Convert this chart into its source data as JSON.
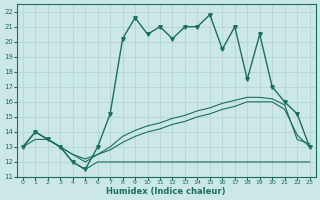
{
  "xlabel": "Humidex (Indice chaleur)",
  "xlim_min": -0.5,
  "xlim_max": 23.5,
  "ylim_min": 11,
  "ylim_max": 22.5,
  "xticks": [
    0,
    1,
    2,
    3,
    4,
    5,
    6,
    7,
    8,
    9,
    10,
    11,
    12,
    13,
    14,
    15,
    16,
    17,
    18,
    19,
    20,
    21,
    22,
    23
  ],
  "yticks": [
    11,
    12,
    13,
    14,
    15,
    16,
    17,
    18,
    19,
    20,
    21,
    22
  ],
  "bg_color": "#cce8e6",
  "line_color": "#1a6e60",
  "grid_color": "#b8d8d4",
  "main_x": [
    0,
    1,
    2,
    3,
    4,
    5,
    6,
    7,
    8,
    9,
    10,
    11,
    12,
    13,
    14,
    15,
    16,
    17,
    18,
    19,
    20,
    21,
    22,
    23
  ],
  "main_y": [
    13,
    14,
    13.5,
    13,
    12,
    11.5,
    13,
    15.2,
    20.2,
    21.6,
    20.5,
    21,
    20.2,
    21,
    21,
    21.8,
    19.5,
    21,
    17.5,
    20.5,
    17,
    16,
    15.2,
    13
  ],
  "flat_x": [
    0,
    1,
    2,
    3,
    4,
    5,
    6,
    17,
    18,
    19,
    20,
    21,
    22,
    23
  ],
  "flat_y": [
    13,
    14,
    13.5,
    13,
    12,
    11.5,
    12,
    12,
    12,
    12,
    12,
    12,
    12,
    12
  ],
  "diag1_x": [
    0,
    1,
    2,
    3,
    4,
    5,
    6,
    7,
    8,
    9,
    10,
    11,
    12,
    13,
    14,
    15,
    16,
    17,
    18,
    19,
    20,
    21,
    22,
    23
  ],
  "diag1_y": [
    13,
    13.5,
    13.5,
    13,
    12.5,
    12,
    12.5,
    12.8,
    13.3,
    13.7,
    14.0,
    14.2,
    14.5,
    14.7,
    15.0,
    15.2,
    15.5,
    15.7,
    16.0,
    16.0,
    16.0,
    15.5,
    13.8,
    13
  ],
  "diag2_x": [
    0,
    1,
    2,
    3,
    4,
    5,
    6,
    7,
    8,
    9,
    10,
    11,
    12,
    13,
    14,
    15,
    16,
    17,
    18,
    19,
    20,
    21,
    22,
    23
  ],
  "diag2_y": [
    13,
    14,
    13.5,
    13,
    12.5,
    12.2,
    12.5,
    13,
    13.7,
    14.1,
    14.4,
    14.6,
    14.9,
    15.1,
    15.4,
    15.6,
    15.9,
    16.1,
    16.3,
    16.3,
    16.2,
    15.8,
    13.5,
    13.2
  ]
}
